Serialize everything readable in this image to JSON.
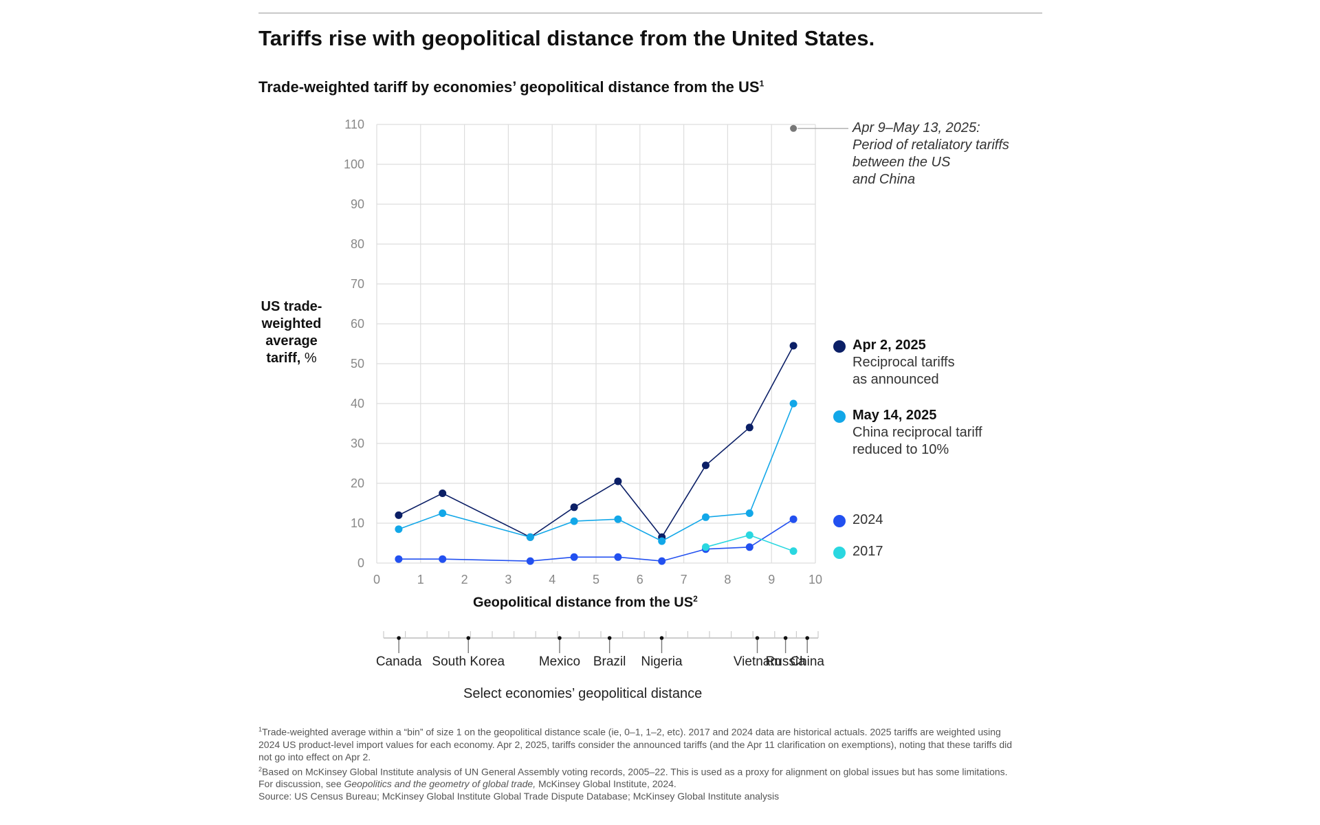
{
  "title": "Tariffs rise with geopolitical distance from the United States.",
  "subtitle": "Trade-weighted tariff by economies’ geopolitical distance from the US",
  "subtitle_note": "1",
  "y_axis_label": {
    "bold": "US trade-weighted average tariff,",
    "unit": "%"
  },
  "annotation": [
    "Apr 9–May 13, 2025:",
    "Period of retaliatory tariffs",
    "between the US",
    "and China"
  ],
  "colors": {
    "apr2025": "#0b1f66",
    "may2025": "#12a7e8",
    "y2024": "#2250f0",
    "y2017": "#2ad7e0",
    "retaliatory": "#777777",
    "grid": "#dddddd"
  },
  "legend": [
    {
      "key": "apr2025",
      "title": "Apr 2, 2025",
      "lines": [
        "Reciprocal tariffs",
        "as announced"
      ]
    },
    {
      "key": "may2025",
      "title": "May 14, 2025",
      "lines": [
        "China reciprocal tariff",
        "reduced to 10%"
      ]
    },
    {
      "key": "y2024",
      "title": "2024",
      "lines": []
    },
    {
      "key": "y2017",
      "title": "2017",
      "lines": []
    }
  ],
  "x_axis_label": "Geopolitical distance from the US",
  "x_axis_note": "2",
  "economies": [
    {
      "name": "Canada",
      "distance": 0.35
    },
    {
      "name": "South Korea",
      "distance": 1.95
    },
    {
      "name": "Mexico",
      "distance": 4.05
    },
    {
      "name": "Brazil",
      "distance": 5.2
    },
    {
      "name": "Nigeria",
      "distance": 6.4
    },
    {
      "name": "Vietnam",
      "distance": 8.6
    },
    {
      "name": "Russia",
      "distance": 9.25
    },
    {
      "name": "China",
      "distance": 9.75
    }
  ],
  "economies_caption": "Select economies’ geopolitical distance",
  "footnotes": {
    "f1": "Trade-weighted average within a “bin” of size 1 on the geopolitical distance scale (ie, 0–1, 1–2, etc). 2017 and 2024 data are historical actuals. 2025 tariffs are weighted using 2024 US product-level import values for each economy. Apr 2, 2025, tariffs consider the announced tariffs (and the Apr 11 clarification on exemptions), noting that these tariffs did not go into effect on Apr 2.",
    "f2_pre": "Based on McKinsey Global Institute analysis of UN General Assembly voting records, 2005–22. This is used as a proxy for alignment on global issues but has some limitations. For discussion, see ",
    "f2_italic": "Geopolitics and the geometry of global trade,",
    "f2_post": " McKinsey Global Institute, 2024.",
    "source": "Source: US Census Bureau; McKinsey Global Institute Global Trade Dispute Database; McKinsey Global Institute analysis"
  },
  "chart_data": {
    "type": "line",
    "title": "Trade-weighted tariff by economies’ geopolitical distance from the US",
    "xlabel": "Geopolitical distance from the US",
    "ylabel": "US trade-weighted average tariff, %",
    "xlim": [
      0,
      10
    ],
    "ylim": [
      0,
      110
    ],
    "xticks": [
      0,
      1,
      2,
      3,
      4,
      5,
      6,
      7,
      8,
      9,
      10
    ],
    "yticks": [
      0,
      10,
      20,
      30,
      40,
      50,
      60,
      70,
      80,
      90,
      100,
      110
    ],
    "grid": true,
    "series": [
      {
        "name": "Apr 2, 2025",
        "key": "apr2025",
        "x": [
          0.5,
          1.5,
          3.5,
          4.5,
          5.5,
          6.5,
          7.5,
          8.5,
          9.5
        ],
        "y": [
          12,
          17.5,
          6.5,
          14,
          20.5,
          6.5,
          24.5,
          34,
          54.5
        ]
      },
      {
        "name": "May 14, 2025",
        "key": "may2025",
        "x": [
          0.5,
          1.5,
          3.5,
          4.5,
          5.5,
          6.5,
          7.5,
          8.5,
          9.5
        ],
        "y": [
          8.5,
          12.5,
          6.5,
          10.5,
          11,
          5.5,
          11.5,
          12.5,
          40
        ]
      },
      {
        "name": "2024",
        "key": "y2024",
        "x": [
          0.5,
          1.5,
          3.5,
          4.5,
          5.5,
          6.5,
          7.5,
          8.5,
          9.5
        ],
        "y": [
          1,
          1,
          0.5,
          1.5,
          1.5,
          0.5,
          3.5,
          4,
          11
        ]
      },
      {
        "name": "2017",
        "key": "y2017",
        "x": [
          7.5,
          8.5,
          9.5
        ],
        "y": [
          4,
          7,
          3
        ]
      },
      {
        "name": "Apr 9–May 13, 2025",
        "key": "retaliatory",
        "x": [
          9.5
        ],
        "y": [
          109
        ]
      }
    ]
  }
}
